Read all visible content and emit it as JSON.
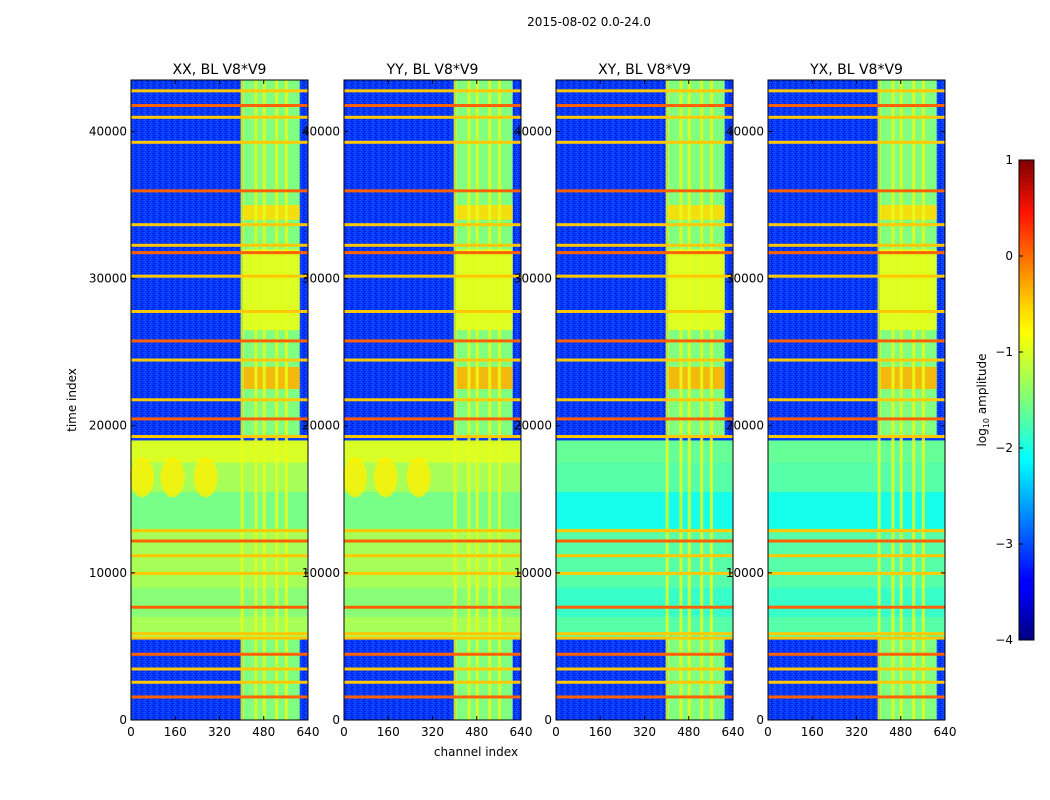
{
  "chart_data": {
    "type": "heatmap",
    "suptitle": "2015-08-02 0.0-24.0",
    "xlabel": "channel index",
    "ylabel": "time index",
    "colormap": "jet",
    "x_range": [
      0,
      640
    ],
    "y_range": [
      0,
      43500
    ],
    "x_ticks": [
      "0",
      "160",
      "320",
      "480",
      "640"
    ],
    "y_ticks": [
      "0",
      "10000",
      "20000",
      "30000",
      "40000"
    ],
    "colorbar": {
      "label_main": "log",
      "label_sub": "10",
      "label_rest": " amplitude",
      "range": [
        -4,
        1
      ],
      "ticks": [
        "1",
        "0",
        "−1",
        "−2",
        "−3",
        "−4"
      ]
    },
    "panels": [
      {
        "title": "XX, BL V8*V9",
        "pol": "XX"
      },
      {
        "title": "YY, BL V8*V9",
        "pol": "YY"
      },
      {
        "title": "XY, BL V8*V9",
        "pol": "XY"
      },
      {
        "title": "YX, BL V8*V9",
        "pol": "YX"
      }
    ]
  }
}
